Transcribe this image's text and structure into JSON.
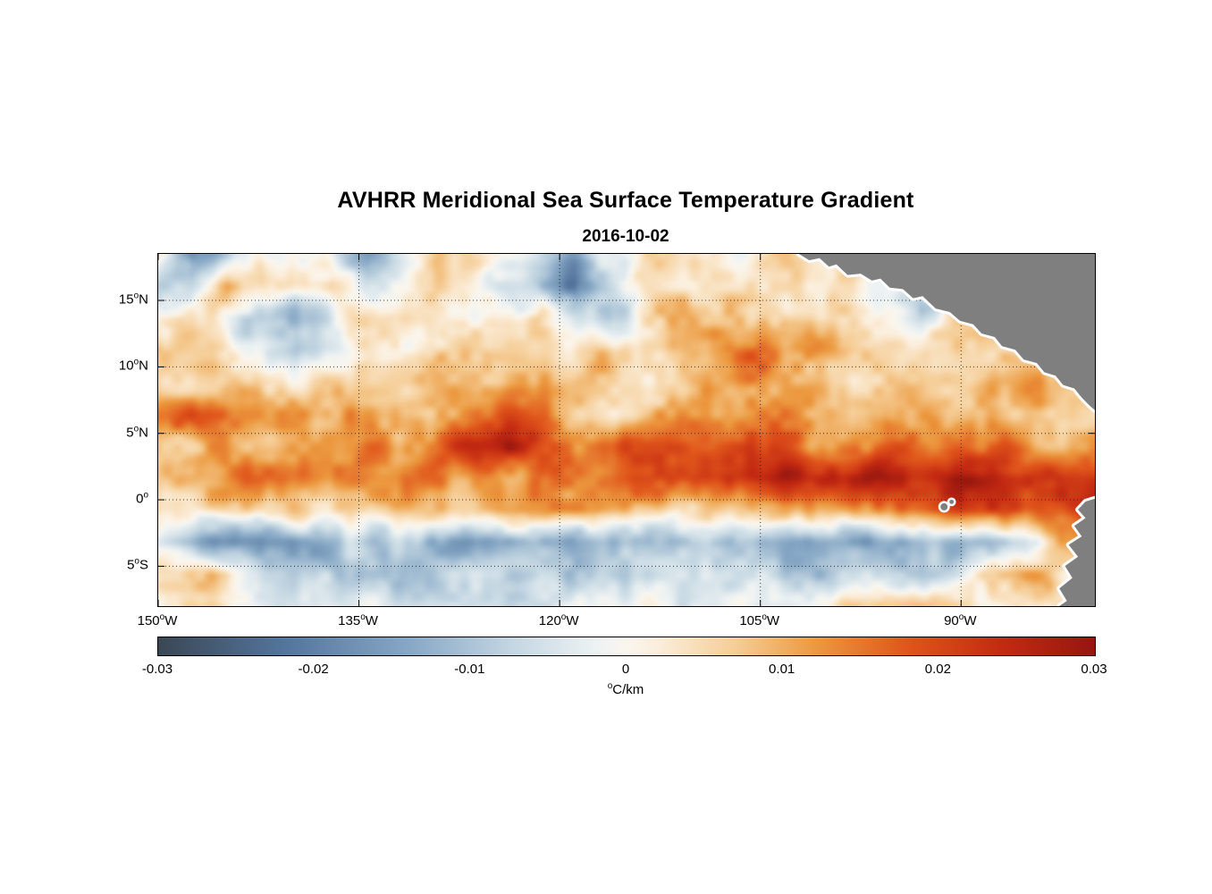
{
  "chart_data": {
    "type": "heatmap",
    "title": "AVHRR Meridional Sea Surface Temperature Gradient",
    "subtitle": "2016-10-02",
    "unit": "°C/km",
    "unit_sup": "o",
    "unit_text": "C/km",
    "lon_range": [
      -150,
      -80
    ],
    "lat_range": [
      -8,
      18.5
    ],
    "lat_ticks": [
      {
        "num": "15",
        "sup": "o",
        "hemi": "N",
        "lat": 15
      },
      {
        "num": "10",
        "sup": "o",
        "hemi": "N",
        "lat": 10
      },
      {
        "num": "5",
        "sup": "o",
        "hemi": "N",
        "lat": 5
      },
      {
        "num": "0",
        "sup": "o",
        "hemi": "",
        "lat": 0
      },
      {
        "num": "5",
        "sup": "o",
        "hemi": "S",
        "lat": -5
      }
    ],
    "lon_ticks": [
      {
        "num": "150",
        "sup": "o",
        "hemi": "W",
        "lon": -150
      },
      {
        "num": "135",
        "sup": "o",
        "hemi": "W",
        "lon": -135
      },
      {
        "num": "120",
        "sup": "o",
        "hemi": "W",
        "lon": -120
      },
      {
        "num": "105",
        "sup": "o",
        "hemi": "W",
        "lon": -105
      },
      {
        "num": "90",
        "sup": "o",
        "hemi": "W",
        "lon": -90
      }
    ],
    "colorbar": {
      "min": -0.03,
      "max": 0.03,
      "tick_labels": [
        "-0.03",
        "-0.02",
        "-0.01",
        "0",
        "0.01",
        "0.02",
        "0.03"
      ],
      "tick_values": [
        -0.03,
        -0.02,
        -0.01,
        0,
        0.01,
        0.02,
        0.03
      ],
      "stops": [
        {
          "v": -0.03,
          "c": "#3a4754"
        },
        {
          "v": -0.022,
          "c": "#53749b"
        },
        {
          "v": -0.014,
          "c": "#86a7c5"
        },
        {
          "v": -0.007,
          "c": "#c6d8e3"
        },
        {
          "v": -0.002,
          "c": "#edf2f3"
        },
        {
          "v": 0.0,
          "c": "#faf6ee"
        },
        {
          "v": 0.002,
          "c": "#fbeedb"
        },
        {
          "v": 0.007,
          "c": "#f5cd96"
        },
        {
          "v": 0.012,
          "c": "#ec9a40"
        },
        {
          "v": 0.018,
          "c": "#e0551b"
        },
        {
          "v": 0.024,
          "c": "#c42a12"
        },
        {
          "v": 0.03,
          "c": "#96160f"
        }
      ]
    },
    "grid": {
      "cols": 28,
      "rows": 12,
      "lon_start": -150,
      "lon_end": -80,
      "lat_start": 18.5,
      "lat_end": -8,
      "values": [
        [
          0.002,
          -0.018,
          -0.01,
          0.004,
          0.002,
          -0.004,
          -0.015,
          -0.008,
          0.004,
          0.006,
          -0.002,
          -0.006,
          -0.012,
          -0.006,
          0.003,
          0.005,
          0.002,
          -0.003,
          0.004,
          0.006,
          0.002,
          0.0,
          -0.005,
          0.002,
          0.004,
          0.002,
          0.0,
          0.002
        ],
        [
          -0.01,
          -0.006,
          0.012,
          0.006,
          -0.002,
          0.003,
          -0.006,
          -0.003,
          0.005,
          0.002,
          -0.004,
          -0.008,
          -0.02,
          -0.01,
          0.002,
          0.004,
          0.003,
          0.005,
          0.004,
          0.006,
          0.003,
          -0.004,
          -0.012,
          -0.008,
          0.003,
          0.002,
          0.001,
          0.0
        ],
        [
          0.002,
          0.004,
          -0.003,
          -0.008,
          -0.012,
          -0.004,
          0.004,
          0.006,
          0.002,
          -0.003,
          0.002,
          0.004,
          -0.006,
          -0.01,
          0.004,
          0.008,
          0.01,
          0.006,
          0.008,
          0.004,
          0.002,
          0.004,
          -0.006,
          0.004,
          0.006,
          0.003,
          -0.004,
          0.002
        ],
        [
          0.008,
          0.006,
          0.003,
          -0.004,
          -0.014,
          -0.006,
          0.004,
          0.002,
          0.004,
          0.006,
          0.004,
          0.002,
          0.004,
          0.006,
          0.008,
          0.006,
          0.012,
          0.016,
          0.012,
          0.014,
          0.01,
          0.006,
          0.004,
          0.008,
          0.006,
          0.004,
          0.006,
          0.004
        ],
        [
          0.004,
          0.006,
          0.008,
          0.004,
          0.002,
          0.004,
          0.006,
          0.008,
          0.01,
          0.008,
          0.006,
          0.008,
          0.006,
          0.008,
          0.006,
          0.004,
          0.01,
          0.014,
          0.01,
          0.008,
          0.006,
          0.008,
          0.01,
          0.006,
          0.01,
          0.012,
          0.008,
          0.006
        ],
        [
          0.014,
          0.018,
          0.012,
          0.016,
          0.014,
          0.01,
          0.012,
          0.006,
          0.01,
          0.016,
          0.02,
          0.014,
          0.008,
          0.006,
          0.008,
          0.01,
          0.008,
          0.01,
          0.012,
          0.008,
          0.01,
          0.012,
          0.01,
          0.008,
          0.01,
          0.008,
          0.006,
          0.004
        ],
        [
          0.01,
          0.008,
          0.012,
          0.01,
          0.008,
          0.012,
          0.014,
          0.01,
          0.018,
          0.024,
          0.026,
          0.02,
          0.014,
          0.016,
          0.018,
          0.02,
          0.014,
          0.018,
          0.016,
          0.012,
          0.014,
          0.018,
          0.016,
          0.014,
          0.016,
          0.012,
          0.01,
          0.008
        ],
        [
          0.008,
          0.01,
          0.012,
          0.014,
          0.012,
          0.01,
          0.014,
          0.016,
          0.014,
          0.012,
          0.01,
          0.014,
          0.012,
          0.016,
          0.02,
          0.022,
          0.02,
          0.024,
          0.026,
          0.022,
          0.026,
          0.028,
          0.024,
          0.028,
          0.026,
          0.022,
          0.024,
          0.02
        ],
        [
          0.004,
          0.002,
          0.004,
          0.006,
          0.008,
          0.006,
          0.004,
          0.006,
          0.008,
          0.006,
          0.01,
          0.012,
          0.016,
          0.01,
          0.006,
          0.004,
          0.008,
          0.01,
          0.012,
          0.008,
          0.01,
          0.014,
          0.016,
          0.02,
          0.022,
          0.014,
          0.018,
          0.024
        ],
        [
          -0.004,
          -0.01,
          -0.016,
          -0.018,
          -0.014,
          -0.012,
          -0.008,
          -0.006,
          -0.014,
          -0.018,
          -0.016,
          -0.012,
          -0.016,
          -0.014,
          -0.01,
          -0.012,
          -0.01,
          -0.008,
          -0.012,
          -0.014,
          -0.016,
          -0.012,
          -0.014,
          -0.01,
          -0.012,
          -0.008,
          0.012,
          0.018
        ],
        [
          0.008,
          0.01,
          0.004,
          -0.004,
          -0.006,
          -0.01,
          -0.008,
          -0.012,
          -0.008,
          -0.004,
          -0.006,
          -0.008,
          -0.012,
          -0.01,
          -0.006,
          -0.004,
          -0.006,
          -0.004,
          -0.008,
          -0.01,
          -0.006,
          -0.004,
          -0.008,
          -0.006,
          0.008,
          0.012,
          0.006,
          -0.004
        ],
        [
          0.002,
          0.004,
          0.002,
          -0.002,
          -0.004,
          -0.002,
          0.0,
          -0.004,
          -0.006,
          -0.008,
          -0.006,
          -0.004,
          -0.002,
          0.0,
          0.002,
          -0.002,
          -0.004,
          -0.002,
          0.0,
          0.002,
          0.004,
          0.006,
          0.008,
          0.004,
          0.002,
          0.006,
          0.004,
          0.002
        ]
      ]
    },
    "noise": {
      "amplitude": 0.0038,
      "scale": 34,
      "seed": 7
    },
    "land": {
      "color": "#7f7f7f",
      "halo": "#ffffff",
      "central_america": [
        [
          0.684,
          0.0
        ],
        [
          0.695,
          0.018
        ],
        [
          0.706,
          0.012
        ],
        [
          0.716,
          0.036
        ],
        [
          0.724,
          0.03
        ],
        [
          0.736,
          0.06
        ],
        [
          0.75,
          0.056
        ],
        [
          0.762,
          0.076
        ],
        [
          0.771,
          0.07
        ],
        [
          0.781,
          0.096
        ],
        [
          0.795,
          0.1
        ],
        [
          0.806,
          0.126
        ],
        [
          0.816,
          0.12
        ],
        [
          0.83,
          0.155
        ],
        [
          0.845,
          0.165
        ],
        [
          0.856,
          0.19
        ],
        [
          0.87,
          0.2
        ],
        [
          0.879,
          0.226
        ],
        [
          0.893,
          0.236
        ],
        [
          0.901,
          0.262
        ],
        [
          0.915,
          0.272
        ],
        [
          0.924,
          0.3
        ],
        [
          0.938,
          0.31
        ],
        [
          0.946,
          0.336
        ],
        [
          0.958,
          0.346
        ],
        [
          0.966,
          0.372
        ],
        [
          0.978,
          0.382
        ],
        [
          0.986,
          0.408
        ],
        [
          0.994,
          0.43
        ],
        [
          1.0,
          0.444
        ]
      ],
      "south_america": [
        [
          1.0,
          0.695
        ],
        [
          0.99,
          0.703
        ],
        [
          0.982,
          0.726
        ],
        [
          0.99,
          0.75
        ],
        [
          0.978,
          0.772
        ],
        [
          0.986,
          0.802
        ],
        [
          0.972,
          0.826
        ],
        [
          0.982,
          0.86
        ],
        [
          0.968,
          0.886
        ],
        [
          0.976,
          0.92
        ],
        [
          0.962,
          0.95
        ],
        [
          0.97,
          0.985
        ],
        [
          0.962,
          1.0
        ]
      ],
      "islands": [
        {
          "x": 0.839,
          "y": 0.718,
          "r": 0.005
        },
        {
          "x": 0.847,
          "y": 0.704,
          "r": 0.0035
        }
      ]
    }
  },
  "layout_colors": {
    "frame": "#000000",
    "gridline": "#1a1a1a",
    "background": "#ffffff"
  }
}
